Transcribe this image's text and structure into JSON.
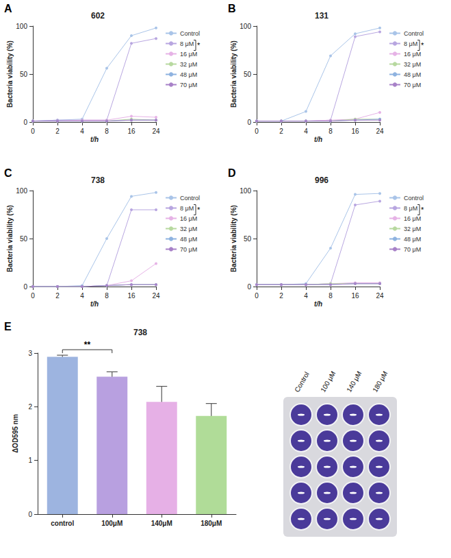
{
  "chart_data": [
    {
      "panel_label": "A",
      "title": "602",
      "type": "line",
      "xlabel": "t/h",
      "ylabel": "Bacteria viability (%)",
      "categories": [
        "0",
        "2",
        "4",
        "8",
        "16",
        "24"
      ],
      "ylim": [
        0,
        100
      ],
      "yticks": [
        0,
        50,
        100
      ],
      "grid": false,
      "legend": "right",
      "marker": "circle",
      "annotations": [
        {
          "text": "*",
          "between": [
            "8 μM",
            "16 μM"
          ]
        }
      ],
      "series": [
        {
          "name": "Control",
          "color": "#a9c4e8",
          "values": [
            1,
            2,
            3,
            56,
            90,
            98
          ]
        },
        {
          "name": "8 μM",
          "color": "#b8a6e0",
          "values": [
            1,
            2,
            2,
            2,
            82,
            87
          ]
        },
        {
          "name": "16 μM",
          "color": "#e6b3e6",
          "values": [
            1,
            1,
            2,
            2,
            6,
            5
          ]
        },
        {
          "name": "32 μM",
          "color": "#b8d9a0",
          "values": [
            1,
            1,
            1,
            1,
            3,
            2
          ]
        },
        {
          "name": "48 μM",
          "color": "#8fb3e0",
          "values": [
            1,
            1,
            1,
            1,
            2,
            2
          ]
        },
        {
          "name": "70 μM",
          "color": "#a882c8",
          "values": [
            1,
            1,
            1,
            1,
            2,
            2
          ]
        }
      ]
    },
    {
      "panel_label": "B",
      "title": "131",
      "type": "line",
      "xlabel": "t/h",
      "ylabel": "Bacteria viability (%)",
      "categories": [
        "0",
        "2",
        "4",
        "8",
        "16",
        "24"
      ],
      "ylim": [
        0,
        100
      ],
      "yticks": [
        0,
        50,
        100
      ],
      "grid": false,
      "legend": "right",
      "marker": "circle",
      "annotations": [
        {
          "text": "*",
          "between": [
            "8 μM",
            "16 μM"
          ]
        }
      ],
      "series": [
        {
          "name": "Control",
          "color": "#a9c4e8",
          "values": [
            1,
            1,
            11,
            69,
            92,
            98
          ]
        },
        {
          "name": "8 μM",
          "color": "#b8a6e0",
          "values": [
            1,
            1,
            1,
            2,
            89,
            94
          ]
        },
        {
          "name": "16 μM",
          "color": "#e6b3e6",
          "values": [
            1,
            1,
            1,
            2,
            3,
            10
          ]
        },
        {
          "name": "32 μM",
          "color": "#b8d9a0",
          "values": [
            1,
            1,
            1,
            1,
            3,
            3
          ]
        },
        {
          "name": "48 μM",
          "color": "#8fb3e0",
          "values": [
            1,
            1,
            1,
            1,
            2,
            3
          ]
        },
        {
          "name": "70 μM",
          "color": "#a882c8",
          "values": [
            1,
            1,
            1,
            1,
            2,
            2
          ]
        }
      ]
    },
    {
      "panel_label": "C",
      "title": "738",
      "type": "line",
      "xlabel": "t/h",
      "ylabel": "Bacteria viability (%)",
      "categories": [
        "0",
        "2",
        "4",
        "8",
        "16",
        "24"
      ],
      "ylim": [
        0,
        100
      ],
      "yticks": [
        0,
        50,
        100
      ],
      "grid": false,
      "legend": "right",
      "marker": "circle",
      "annotations": [
        {
          "text": "*",
          "between": [
            "8 μM",
            "16 μM"
          ]
        }
      ],
      "series": [
        {
          "name": "Control",
          "color": "#a9c4e8",
          "values": [
            0,
            0,
            1,
            50,
            94,
            98
          ]
        },
        {
          "name": "8 μM",
          "color": "#b8a6e0",
          "values": [
            0,
            0,
            0,
            1,
            80,
            80
          ]
        },
        {
          "name": "16 μM",
          "color": "#e6b3e6",
          "values": [
            0,
            0,
            0,
            1,
            6,
            24
          ]
        },
        {
          "name": "32 μM",
          "color": "#b8d9a0",
          "values": [
            0,
            0,
            0,
            1,
            2,
            2
          ]
        },
        {
          "name": "48 μM",
          "color": "#8fb3e0",
          "values": [
            0,
            0,
            0,
            1,
            2,
            2
          ]
        },
        {
          "name": "70 μM",
          "color": "#a882c8",
          "values": [
            0,
            0,
            0,
            1,
            2,
            2
          ]
        }
      ]
    },
    {
      "panel_label": "D",
      "title": "996",
      "type": "line",
      "xlabel": "t/h",
      "ylabel": "Bacteria viability (%)",
      "categories": [
        "0",
        "2",
        "4",
        "8",
        "16",
        "24"
      ],
      "ylim": [
        0,
        100
      ],
      "yticks": [
        0,
        50,
        100
      ],
      "grid": false,
      "legend": "right",
      "marker": "circle",
      "annotations": [
        {
          "text": "*",
          "between": [
            "8 μM",
            "16 μM"
          ]
        }
      ],
      "series": [
        {
          "name": "Control",
          "color": "#a9c4e8",
          "values": [
            2,
            2,
            3,
            40,
            96,
            97
          ]
        },
        {
          "name": "8 μM",
          "color": "#b8a6e0",
          "values": [
            2,
            2,
            2,
            3,
            85,
            89
          ]
        },
        {
          "name": "16 μM",
          "color": "#e6b3e6",
          "values": [
            2,
            2,
            2,
            3,
            4,
            4
          ]
        },
        {
          "name": "32 μM",
          "color": "#b8d9a0",
          "values": [
            2,
            2,
            2,
            3,
            3,
            3
          ]
        },
        {
          "name": "48 μM",
          "color": "#8fb3e0",
          "values": [
            2,
            2,
            2,
            2,
            3,
            3
          ]
        },
        {
          "name": "70 μM",
          "color": "#a882c8",
          "values": [
            2,
            2,
            2,
            2,
            3,
            3
          ]
        }
      ]
    },
    {
      "panel_label": "E",
      "title": "738",
      "type": "bar",
      "ylabel": "ΔOD595 nm",
      "categories": [
        "control",
        "100μM",
        "140μM",
        "180μM"
      ],
      "values": [
        2.93,
        2.56,
        2.09,
        1.83
      ],
      "errors": [
        0.03,
        0.09,
        0.29,
        0.23
      ],
      "colors": [
        "#9db4e0",
        "#b8a0e0",
        "#e6b0e6",
        "#b0dc98"
      ],
      "ylim": [
        0,
        3
      ],
      "yticks": [
        0,
        1,
        2,
        3
      ],
      "grid": false,
      "annotations": [
        {
          "text": "**",
          "between": [
            "control",
            "100μM"
          ]
        }
      ]
    }
  ],
  "image": {
    "column_labels": [
      "Control",
      "100 μM",
      "140 μM",
      "180 μM"
    ]
  }
}
